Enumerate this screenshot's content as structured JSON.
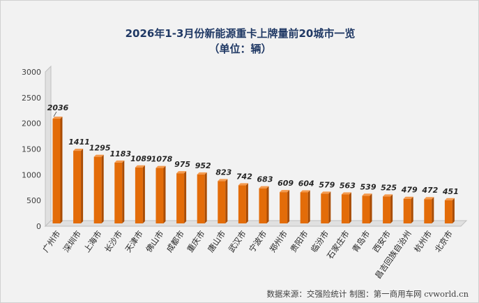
{
  "chart_data": {
    "type": "bar",
    "title": "2026年1-3月份新能源重卡上牌量前20城市一览",
    "subtitle": "（单位：辆）",
    "categories": [
      "广州市",
      "深圳市",
      "上海市",
      "长沙市",
      "天津市",
      "佛山市",
      "成都市",
      "重庆市",
      "唐山市",
      "武汉市",
      "宁波市",
      "郑州市",
      "贵阳市",
      "临汾市",
      "石家庄市",
      "青岛市",
      "西安市",
      "昌吉回族自治州",
      "杭州市",
      "北京市"
    ],
    "values": [
      2036,
      1411,
      1295,
      1183,
      1089,
      1078,
      975,
      952,
      823,
      742,
      683,
      609,
      604,
      579,
      563,
      539,
      525,
      479,
      472,
      451
    ],
    "xlabel": "",
    "ylabel": "",
    "ylim": [
      0,
      3000
    ],
    "yticks": [
      0,
      500,
      1000,
      1500,
      2000,
      2500,
      3000
    ],
    "grid": false,
    "legend": "none",
    "bar_color": "#e36c09",
    "bar_side_color": "#a94c04"
  },
  "footer": "数据来源：交强险统计   制图：第一商用车网 cvworld.cn"
}
